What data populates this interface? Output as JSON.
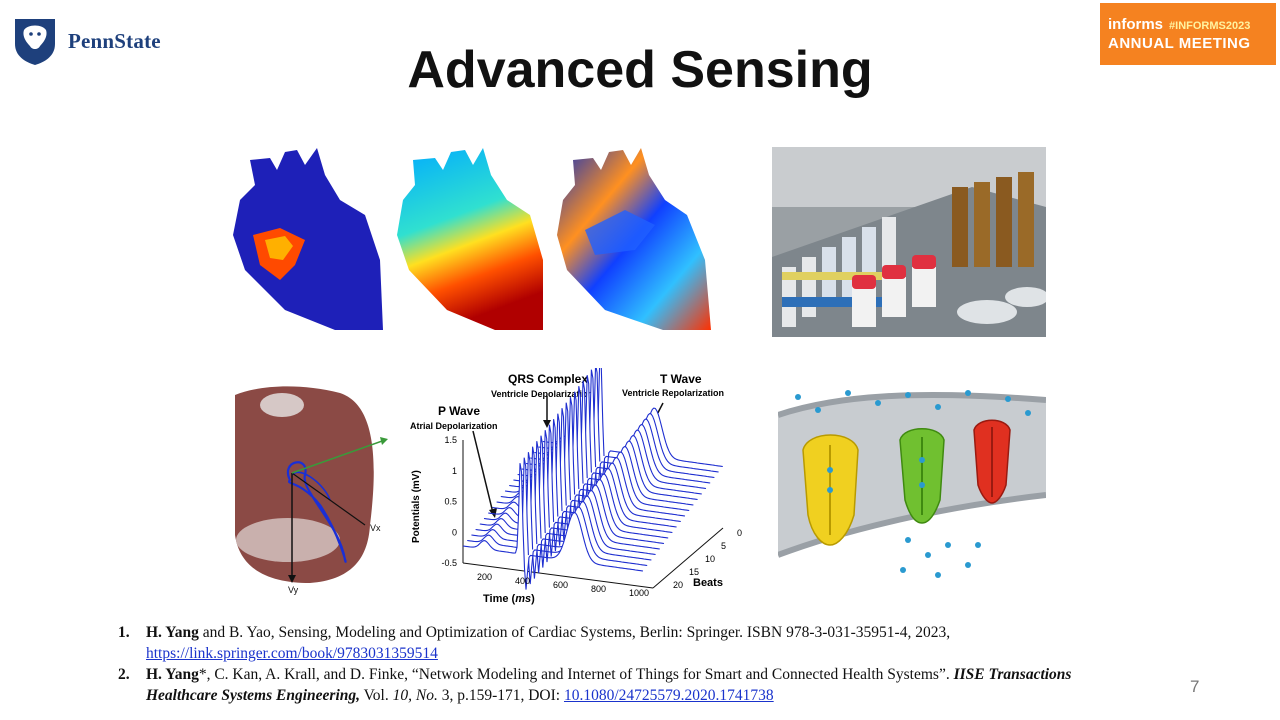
{
  "header": {
    "logo_text": "PennState",
    "badge_brand": "informs",
    "badge_tag": "#INFORMS2023",
    "badge_event": "ANNUAL MEETING"
  },
  "slide": {
    "title": "Advanced Sensing",
    "page_number": "7"
  },
  "ecg_figure": {
    "qrs_label": "QRS Complex",
    "qrs_sub": "Ventricle Depolarization",
    "t_label": "T Wave",
    "t_sub": "Ventricle Repolarization",
    "p_label": "P Wave",
    "p_sub": "Atrial Depolarization",
    "ylabel": "Potentials (mV)",
    "xlabel_prefix": "Time (",
    "xlabel_unit": "ms",
    "xlabel_suffix": ")",
    "zlabel": "Beats",
    "y_ticks": [
      "1.5",
      "1",
      "0.5",
      "0",
      "-0.5"
    ],
    "x_ticks": [
      "200",
      "400",
      "600",
      "800",
      "1000"
    ],
    "z_ticks": [
      "0",
      "5",
      "10",
      "15",
      "20"
    ]
  },
  "vcg_figure": {
    "axis_x": "Vx",
    "axis_y": "Vy"
  },
  "references": [
    {
      "num": "1.",
      "author": "H. Yang",
      "text": " and B. Yao, Sensing, Modeling and Optimization of Cardiac Systems, Berlin: Springer. ISBN 978-3-031-35951-4, 2023,",
      "link": "https://link.springer.com/book/9783031359514"
    },
    {
      "num": "2.",
      "author": "H. Yang",
      "text": "*, C. Kan, A. Krall, and D. Finke, “Network Modeling and Internet of Things for Smart and Connected Health Systems”. ",
      "journal": "IISE Transactions Healthcare Systems Engineering,",
      "text2": " Vol. ",
      "vol": "10, No.",
      "text3": " 3, p.159-171, DOI: ",
      "link": "10.1080/24725579.2020.1741738"
    }
  ],
  "colors": {
    "pennstate_blue": "#1e407c",
    "informs_orange": "#f58220",
    "link_blue": "#1a33cc"
  }
}
